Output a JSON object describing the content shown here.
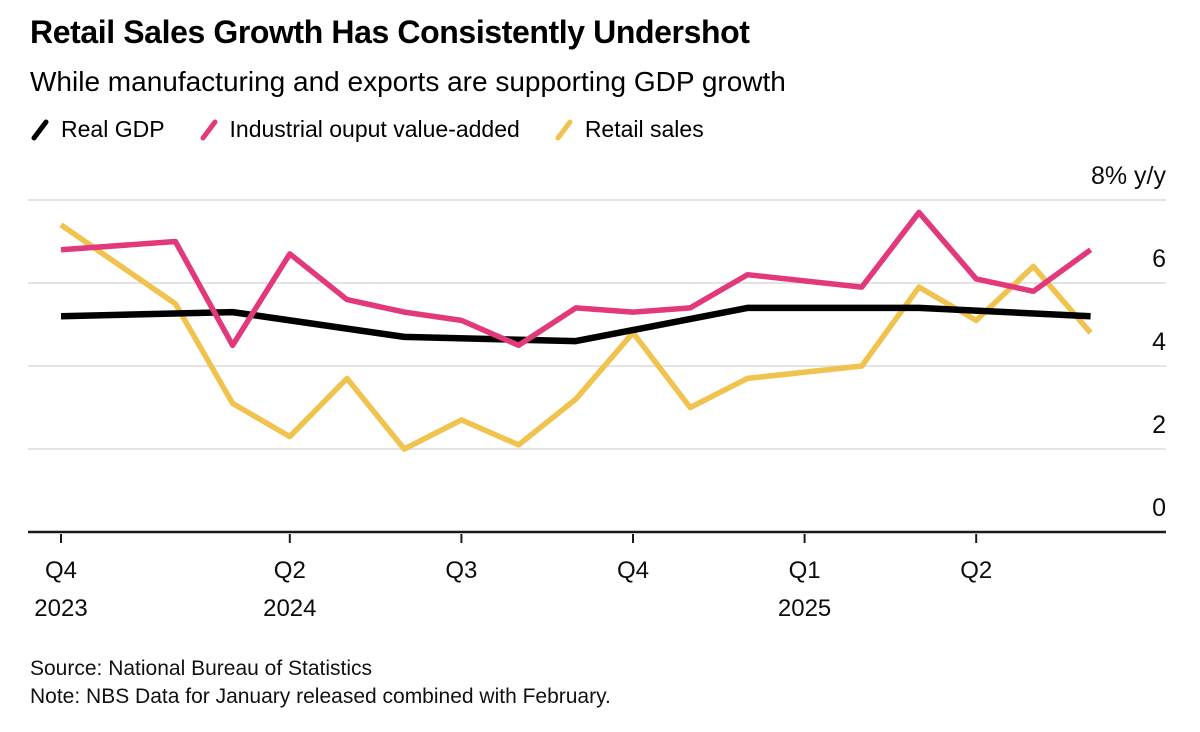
{
  "header": {
    "title": "Retail Sales Growth Has Consistently Undershot",
    "subtitle": "While manufacturing and exports are supporting GDP growth"
  },
  "chart_data": {
    "type": "line",
    "title": "Retail Sales Growth Has Consistently Undershot",
    "subtitle": "While manufacturing and exports are supporting GDP growth",
    "unit": "% y/y",
    "x_axis": {
      "note": "monthly time axis from Dec 2023 (month 0) to Jun 2025 (month 18), Jan data combined with Feb",
      "ticks": [
        {
          "month": 0,
          "quarter": "Q4",
          "year": "2023"
        },
        {
          "month": 4,
          "quarter": "Q2",
          "year": "2024"
        },
        {
          "month": 7,
          "quarter": "Q3",
          "year": ""
        },
        {
          "month": 10,
          "quarter": "Q4",
          "year": ""
        },
        {
          "month": 13,
          "quarter": "Q1",
          "year": "2025"
        },
        {
          "month": 16,
          "quarter": "Q2",
          "year": ""
        }
      ]
    },
    "y_axis": {
      "range": [
        0,
        8
      ],
      "grid": true,
      "label_position": "right",
      "ticks": [
        {
          "value": 0,
          "label": "0"
        },
        {
          "value": 2,
          "label": "2"
        },
        {
          "value": 4,
          "label": "4"
        },
        {
          "value": 6,
          "label": "6"
        },
        {
          "value": 8,
          "label": "8% y/y"
        }
      ]
    },
    "series": [
      {
        "key": "real-gdp",
        "name": "Real GDP",
        "color": "#000000",
        "x_months": [
          0,
          3,
          6,
          9,
          12,
          15,
          18
        ],
        "values": [
          5.2,
          5.3,
          4.7,
          4.6,
          5.4,
          5.4,
          5.2
        ]
      },
      {
        "key": "industrial-output",
        "name": "Industrial ouput value-added",
        "color": "#E2397D",
        "x_months": [
          0,
          2,
          3,
          4,
          5,
          6,
          7,
          8,
          9,
          10,
          11,
          12,
          14,
          15,
          16,
          17,
          18
        ],
        "values": [
          6.8,
          7.0,
          4.5,
          6.7,
          5.6,
          5.3,
          5.1,
          4.5,
          5.4,
          5.3,
          5.4,
          6.2,
          5.9,
          7.7,
          6.1,
          5.8,
          6.8
        ]
      },
      {
        "key": "retail-sales",
        "name": "Retail sales",
        "color": "#F0C24E",
        "x_months": [
          0,
          2,
          3,
          4,
          5,
          6,
          7,
          8,
          9,
          10,
          11,
          12,
          14,
          15,
          16,
          17,
          18
        ],
        "values": [
          7.4,
          5.5,
          3.1,
          2.3,
          3.7,
          2.0,
          2.7,
          2.1,
          3.2,
          4.8,
          3.0,
          3.7,
          4.0,
          5.9,
          5.1,
          6.4,
          4.8
        ]
      }
    ],
    "colors": {
      "grid": "#DCDCDC",
      "axis": "#1A1A1A"
    }
  },
  "footer": {
    "source": "Source: National Bureau of Statistics",
    "note": "Note: NBS Data for January released combined with February."
  }
}
